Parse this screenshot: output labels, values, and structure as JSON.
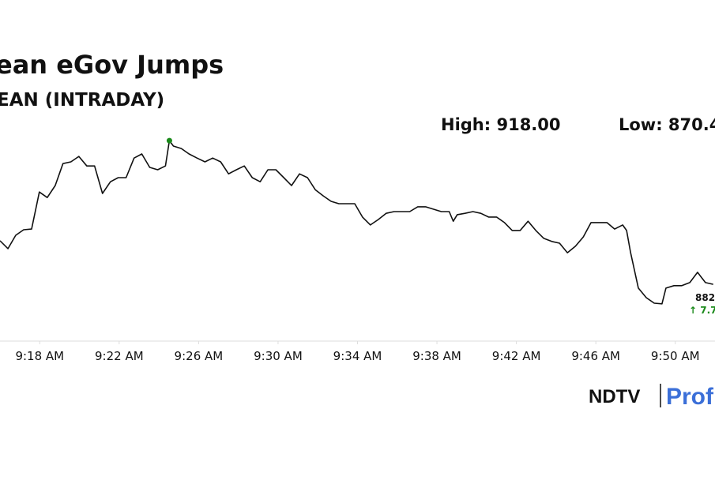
{
  "chart_data": {
    "type": "line",
    "title": "ean eGov Jumps",
    "subtitle": "EAN (INTRADAY)",
    "annotations": [
      "High: 918.00",
      "Low: 870.4",
      "882",
      "↑ 7.7"
    ],
    "logo": {
      "brand": "NDTV",
      "product": "Prof"
    },
    "x": [
      556.0,
      556.4,
      556.79,
      557.19,
      557.59,
      557.98,
      558.38,
      558.78,
      559.17,
      559.57,
      559.97,
      560.37,
      560.76,
      561.16,
      561.56,
      561.95,
      562.35,
      562.75,
      563.14,
      563.54,
      563.94,
      564.33,
      564.53,
      564.73,
      565.13,
      565.52,
      565.92,
      566.32,
      566.71,
      567.11,
      567.51,
      567.9,
      568.3,
      568.7,
      569.1,
      569.49,
      569.89,
      570.29,
      570.68,
      571.08,
      571.48,
      571.87,
      572.27,
      572.67,
      573.06,
      573.46,
      573.86,
      574.25,
      574.65,
      575.05,
      575.44,
      575.84,
      576.24,
      576.63,
      577.03,
      577.43,
      577.83,
      578.22,
      578.62,
      578.82,
      579.02,
      579.41,
      579.81,
      580.21,
      580.6,
      581.0,
      581.4,
      581.79,
      582.19,
      582.59,
      582.98,
      583.38,
      583.78,
      584.17,
      584.57,
      584.97,
      585.37,
      585.76,
      586.16,
      586.56,
      586.95,
      587.35,
      587.55,
      587.75,
      588.14,
      588.54,
      588.94,
      589.33,
      589.53,
      589.93,
      590.33,
      590.73,
      591.12,
      591.52,
      591.91
    ],
    "series": [
      {
        "color": "#111111",
        "values": [
          888.8,
          886.5,
          890.4,
          892.0,
          892.2,
          903.0,
          901.4,
          904.9,
          911.3,
          911.8,
          913.4,
          910.6,
          910.6,
          902.6,
          906.0,
          907.2,
          907.2,
          912.9,
          914.1,
          910.2,
          909.5,
          910.6,
          918.0,
          916.4,
          915.7,
          914.1,
          912.9,
          911.8,
          912.9,
          911.8,
          908.3,
          909.5,
          910.6,
          907.2,
          906.0,
          909.5,
          909.5,
          907.2,
          904.9,
          908.3,
          907.2,
          903.7,
          901.9,
          900.3,
          899.6,
          899.6,
          899.6,
          895.7,
          893.4,
          895.0,
          896.8,
          897.3,
          897.3,
          897.3,
          898.7,
          898.7,
          898.0,
          897.3,
          897.3,
          894.5,
          896.4,
          896.8,
          897.3,
          896.8,
          895.7,
          895.7,
          894.1,
          891.8,
          891.8,
          894.5,
          891.8,
          889.5,
          888.6,
          888.1,
          885.3,
          887.2,
          889.9,
          894.1,
          894.1,
          894.1,
          892.2,
          893.4,
          891.8,
          885.3,
          875.0,
          872.2,
          870.6,
          870.4,
          875.0,
          875.7,
          875.7,
          876.6,
          879.6,
          876.6,
          876.1
        ]
      }
    ],
    "marker_color": "#1a8a1a",
    "xlim": [
      556,
      592
    ],
    "ylim": [
      860,
      927
    ],
    "xticks": [
      {
        "value": 558,
        "label": "9:18 AM"
      },
      {
        "value": 562,
        "label": "9:22 AM"
      },
      {
        "value": 566,
        "label": "9:26 AM"
      },
      {
        "value": 570,
        "label": "9:30 AM"
      },
      {
        "value": 574,
        "label": "9:34 AM"
      },
      {
        "value": 578,
        "label": "9:38 AM"
      },
      {
        "value": 582,
        "label": "9:42 AM"
      },
      {
        "value": 586,
        "label": "9:46 AM"
      },
      {
        "value": 590,
        "label": "9:50 AM"
      }
    ]
  }
}
